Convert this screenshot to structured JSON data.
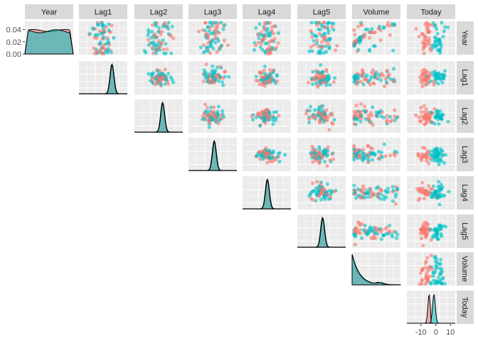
{
  "chart_data": {
    "type": "scatter",
    "kind": "pairs-plot-upper-triangle",
    "variables": [
      "Year",
      "Lag1",
      "Lag2",
      "Lag3",
      "Lag4",
      "Lag5",
      "Volume",
      "Today"
    ],
    "groups": [
      {
        "color": "#F8766D"
      },
      {
        "color": "#00BFC4"
      }
    ],
    "diagonal": "density",
    "off_diagonal": "scatter",
    "year_density_axis": {
      "ylim": [
        0,
        0.05
      ],
      "ticks": [
        "0.04",
        "0.02",
        "0.00"
      ]
    },
    "today_axis": {
      "ticks": [
        "-10",
        "0",
        "10"
      ]
    },
    "grid": true,
    "panel_background": "#EBEBEB",
    "strip_background": "#D9D9D9"
  }
}
